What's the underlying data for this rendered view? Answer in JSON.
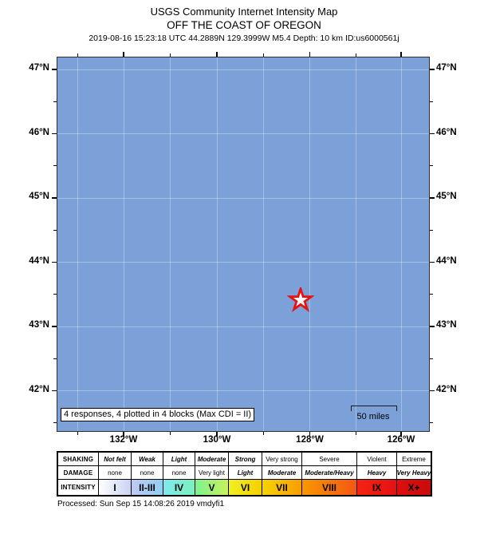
{
  "title": {
    "line1": "USGS Community Internet Intensity Map",
    "line2": "OFF THE COAST OF OREGON",
    "line3": "2019-08-16 15:23:18 UTC 44.2889N 129.3999W M5.4 Depth: 10 km ID:us6000561j"
  },
  "map": {
    "ocean_color": "#7ba1d8",
    "epicenter_color": "#e81210",
    "lat_labels": [
      "47°N",
      "46°N",
      "45°N",
      "44°N",
      "43°N",
      "42°N"
    ],
    "lon_labels": [
      "132°W",
      "130°W",
      "128°W",
      "126°W"
    ],
    "annotation": "4 responses, 4 plotted in 4 blocks (Max CDI = II)",
    "scale_label": "50 miles"
  },
  "legend": {
    "row_headers": [
      "SHAKING",
      "DAMAGE",
      "INTENSITY"
    ],
    "columns": [
      {
        "shaking": "Not felt",
        "shaking_em": true,
        "damage": "none",
        "damage_em": false,
        "intensity": "I",
        "color_left": "#ffffff",
        "color_right": "#c9d3f1"
      },
      {
        "shaking": "Weak",
        "shaking_em": true,
        "damage": "none",
        "damage_em": false,
        "intensity": "II-III",
        "color_left": "#bdc9f5",
        "color_right": "#8fd0f2"
      },
      {
        "shaking": "Light",
        "shaking_em": true,
        "damage": "none",
        "damage_em": false,
        "intensity": "IV",
        "color_left": "#7ee9ef",
        "color_right": "#7cf0bc"
      },
      {
        "shaking": "Moderate",
        "shaking_em": true,
        "damage": "Very light",
        "damage_em": false,
        "intensity": "V",
        "color_left": "#7ef291",
        "color_right": "#c8f25c"
      },
      {
        "shaking": "Strong",
        "shaking_em": true,
        "damage": "Light",
        "damage_em": true,
        "intensity": "VI",
        "color_left": "#f0f022",
        "color_right": "#f6cf00"
      },
      {
        "shaking": "Very strong",
        "shaking_em": false,
        "damage": "Moderate",
        "damage_em": true,
        "intensity": "VII",
        "color_left": "#f6d500",
        "color_right": "#f89d00"
      },
      {
        "shaking": "Severe",
        "shaking_em": false,
        "damage": "Moderate/Heavy",
        "damage_em": true,
        "intensity": "VIII",
        "color_left": "#f89700",
        "color_right": "#f55714"
      },
      {
        "shaking": "Violent",
        "shaking_em": false,
        "damage": "Heavy",
        "damage_em": true,
        "intensity": "IX",
        "color_left": "#f42312",
        "color_right": "#e51212"
      },
      {
        "shaking": "Extreme",
        "shaking_em": false,
        "damage": "Very Heavy",
        "damage_em": true,
        "intensity": "X+",
        "color_left": "#dd0e0e",
        "color_right": "#c90c0c"
      }
    ]
  },
  "footer": {
    "processed": "Processed: Sun Sep 15 14:08:26 2019 vmdyfi1"
  }
}
